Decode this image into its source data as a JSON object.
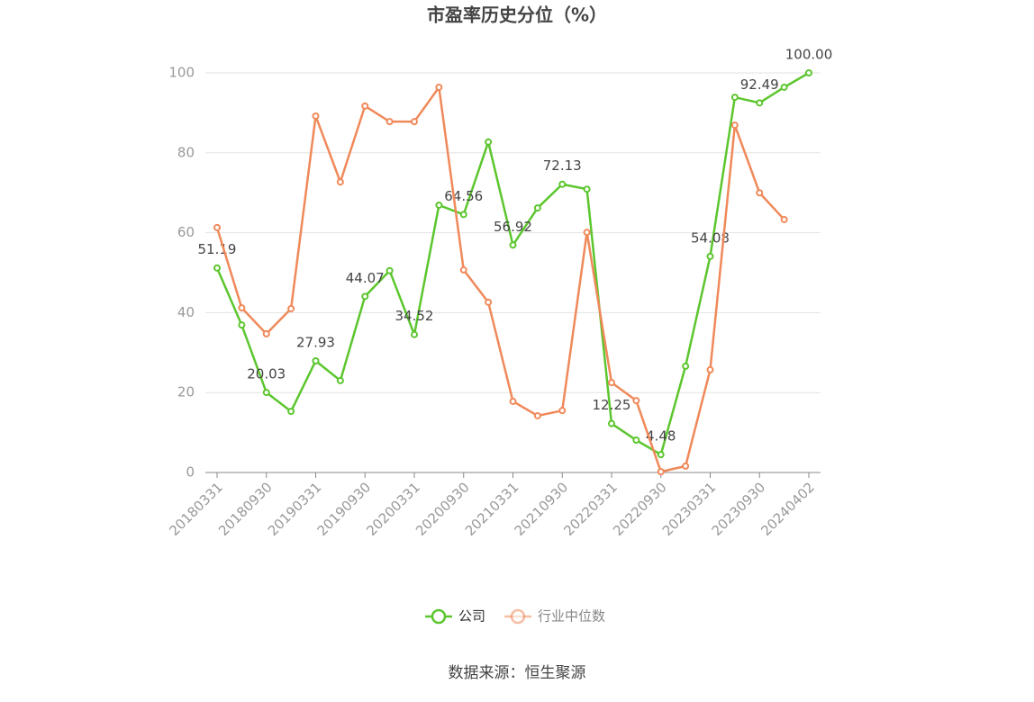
{
  "chart_data": {
    "type": "line",
    "title": "市盈率历史分位（%）",
    "source": "数据来源：恒生聚源",
    "categories": [
      "20180331",
      null,
      "20180930",
      null,
      "20190331",
      null,
      "20190930",
      null,
      "20200331",
      null,
      "20200930",
      null,
      "20210331",
      null,
      "20210930",
      null,
      "20220331",
      null,
      "20220930",
      null,
      "20230331",
      null,
      "20230930",
      null,
      "20240402"
    ],
    "series": [
      {
        "name": "公司",
        "color": "#5cc62e",
        "values": [
          51.19,
          36.9,
          20.03,
          15.3,
          27.93,
          23.0,
          44.07,
          50.5,
          34.52,
          66.9,
          64.56,
          82.7,
          56.92,
          66.2,
          72.13,
          70.9,
          12.25,
          8.1,
          4.48,
          26.6,
          54.08,
          93.9,
          92.49,
          96.4,
          100
        ],
        "value_labels": [
          "51.19",
          null,
          "20.03",
          null,
          "27.93",
          null,
          "44.07",
          null,
          "34.52",
          null,
          "64.56",
          null,
          "56.92",
          null,
          "72.13",
          null,
          "12.25",
          null,
          "4.48",
          null,
          "54.08",
          null,
          "92.49",
          null,
          "100.00"
        ]
      },
      {
        "name": "行业中位数",
        "color": "#f0895a",
        "values": [
          61.3,
          41.2,
          34.7,
          41.0,
          89.2,
          72.7,
          91.7,
          87.8,
          87.8,
          96.4,
          50.7,
          42.6,
          17.8,
          14.2,
          15.5,
          60.1,
          22.5,
          18.0,
          0.2,
          1.6,
          25.7,
          86.9,
          70.0,
          63.3,
          null
        ]
      }
    ],
    "ylim": [
      0,
      100
    ],
    "yticks": [
      0,
      20,
      40,
      60,
      80,
      100
    ],
    "grid": true
  }
}
